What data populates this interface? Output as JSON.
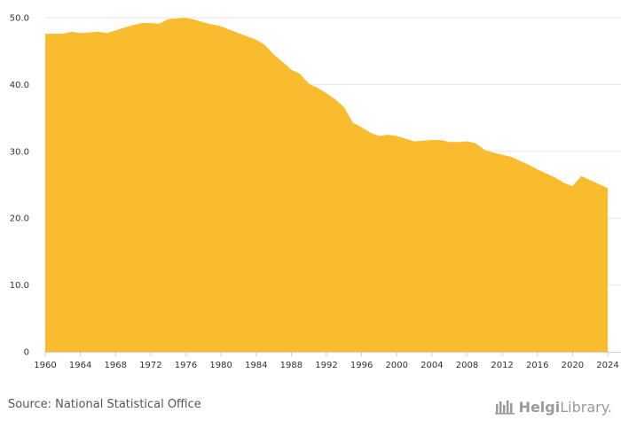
{
  "chart_data": {
    "type": "area",
    "title": "",
    "xlabel": "",
    "ylabel": "",
    "x": [
      1960,
      1961,
      1962,
      1963,
      1964,
      1965,
      1966,
      1967,
      1968,
      1969,
      1970,
      1971,
      1972,
      1973,
      1974,
      1975,
      1976,
      1977,
      1978,
      1979,
      1980,
      1981,
      1982,
      1983,
      1984,
      1985,
      1986,
      1987,
      1988,
      1989,
      1990,
      1991,
      1992,
      1993,
      1994,
      1995,
      1996,
      1997,
      1998,
      1999,
      2000,
      2001,
      2002,
      2003,
      2004,
      2005,
      2006,
      2007,
      2008,
      2009,
      2010,
      2011,
      2012,
      2013,
      2014,
      2015,
      2016,
      2017,
      2018,
      2019,
      2020,
      2021,
      2022,
      2023,
      2024
    ],
    "values": [
      47.6,
      47.6,
      47.6,
      47.9,
      47.7,
      47.8,
      47.9,
      47.7,
      48.1,
      48.5,
      48.9,
      49.2,
      49.2,
      49.1,
      49.8,
      49.9,
      50.0,
      49.7,
      49.3,
      49.0,
      48.7,
      48.2,
      47.7,
      47.2,
      46.7,
      45.9,
      44.5,
      43.4,
      42.2,
      41.6,
      40.1,
      39.5,
      38.7,
      37.8,
      36.6,
      34.3,
      33.6,
      32.8,
      32.3,
      32.5,
      32.3,
      31.9,
      31.5,
      31.6,
      31.7,
      31.7,
      31.4,
      31.4,
      31.5,
      31.2,
      30.2,
      29.8,
      29.5,
      29.2,
      28.6,
      28.0,
      27.3,
      26.7,
      26.1,
      25.3,
      24.8,
      26.3,
      25.7,
      25.1,
      24.5
    ],
    "x_ticks": [
      "1960",
      "1964",
      "1968",
      "1972",
      "1976",
      "1980",
      "1984",
      "1988",
      "1992",
      "1996",
      "2000",
      "2004",
      "2008",
      "2012",
      "2016",
      "2020",
      "2024"
    ],
    "y_ticks": [
      "0",
      "10.0",
      "20.0",
      "30.0",
      "40.0",
      "50.0"
    ],
    "ylim": [
      0,
      50
    ],
    "xlim": [
      1960,
      2024
    ],
    "grid": true,
    "legend": "none",
    "color": "#F9BC2F"
  },
  "source": "Source: National Statistical Office",
  "logo": {
    "icon": "library-icon",
    "part1": "Helgi",
    "part2": "Library",
    "suffix": "."
  }
}
